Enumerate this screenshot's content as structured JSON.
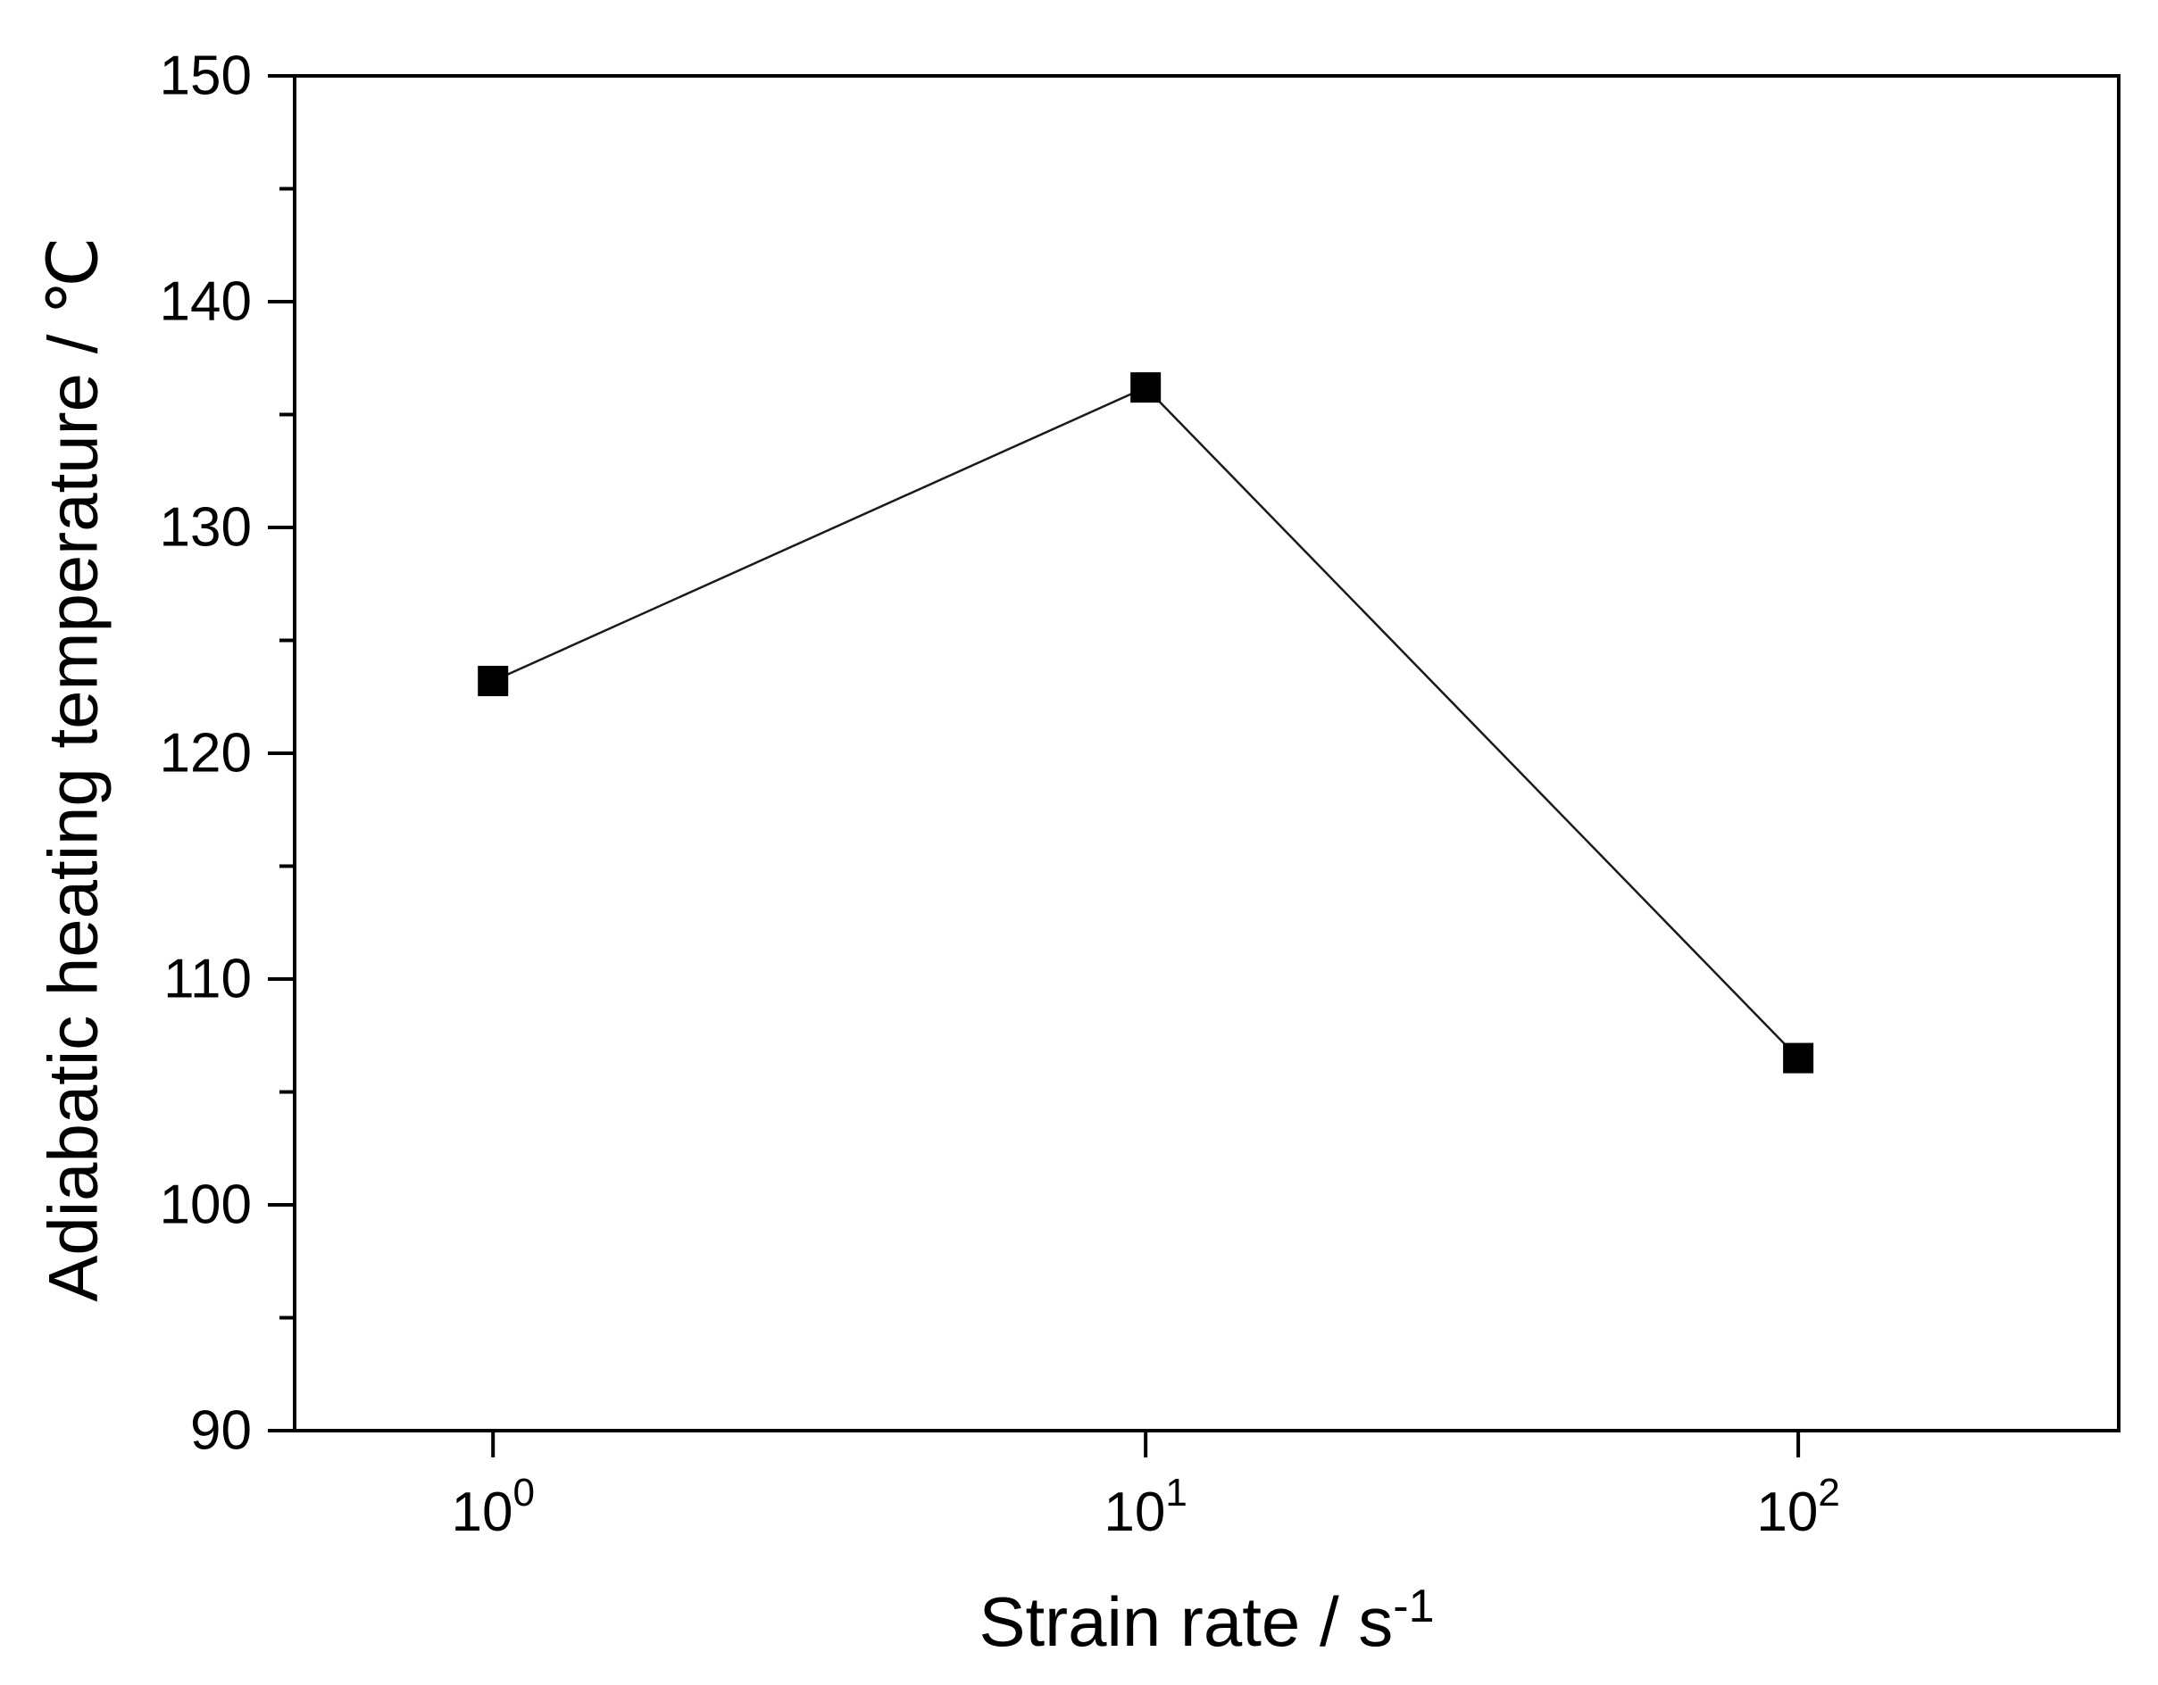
{
  "chart_data": {
    "type": "line",
    "title": "",
    "xlabel": "Strain rate / s⁻¹",
    "xlabel_base": "Strain rate / s",
    "xlabel_sup": "-1",
    "ylabel": "Adiabatic heating temperature / ℃",
    "x_scale": "log",
    "x": [
      1,
      10,
      100
    ],
    "x_tick_base": "10",
    "x_tick_exponents": [
      "0",
      "1",
      "2"
    ],
    "series": [
      {
        "name": "Adiabatic heating temperature",
        "values": [
          123.2,
          136.2,
          106.5
        ]
      }
    ],
    "ylim": [
      90,
      150
    ],
    "xlim_log10": [
      -0.304,
      2.491
    ],
    "y_ticks_major": [
      90,
      100,
      110,
      120,
      130,
      140,
      150
    ],
    "y_ticks_minor": [
      95,
      105,
      115,
      125,
      135,
      145
    ],
    "grid": false,
    "legend": "none",
    "marker": "filled-square",
    "marker_color": "#000000",
    "line_color": "#1a1a1a",
    "axis_color": "#000000",
    "background_color": "#ffffff"
  }
}
